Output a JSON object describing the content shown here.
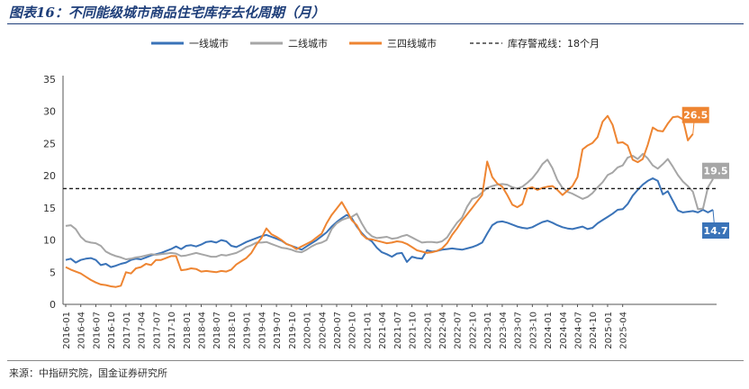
{
  "title": "图表16：不同能级城市商品住宅库存去化周期（月）",
  "source": "来源：中指研究院，国金证券研究所",
  "chart_data": {
    "type": "line",
    "ylim": [
      0,
      35
    ],
    "yticks": [
      0,
      5,
      10,
      15,
      20,
      25,
      30,
      35
    ],
    "grid": false,
    "legend_position": "top",
    "x_tick_labels": [
      "2016-01",
      "2016-04",
      "2016-07",
      "2016-10",
      "2017-01",
      "2017-04",
      "2017-07",
      "2017-10",
      "2018-01",
      "2018-04",
      "2018-07",
      "2018-10",
      "2019-01",
      "2019-04",
      "2019-07",
      "2019-10",
      "2020-01",
      "2020-04",
      "2020-07",
      "2020-10",
      "2021-01",
      "2021-04",
      "2021-07",
      "2021-10",
      "2022-01",
      "2022-04",
      "2022-07",
      "2022-10",
      "2023-01",
      "2023-04",
      "2023-07",
      "2023-10",
      "2024-01",
      "2024-04",
      "2024-07",
      "2024-10",
      "2025-01",
      "2025-04"
    ],
    "x_start": "2016-01",
    "series": [
      {
        "name": "一线城市",
        "color": "#3a73b8",
        "end_label": "14.7",
        "values": [
          6.9,
          7.1,
          6.5,
          6.9,
          7.1,
          7.2,
          6.9,
          6.1,
          6.3,
          5.8,
          6.0,
          6.3,
          6.5,
          6.9,
          7.1,
          7.0,
          7.3,
          7.6,
          7.8,
          8.0,
          8.3,
          8.6,
          9.0,
          8.6,
          9.1,
          9.2,
          9.0,
          9.3,
          9.7,
          9.8,
          9.6,
          10.0,
          9.8,
          9.1,
          8.9,
          9.3,
          9.7,
          10.0,
          10.3,
          10.6,
          10.8,
          10.5,
          10.2,
          9.9,
          9.4,
          9.1,
          8.8,
          8.5,
          9.0,
          9.5,
          10.0,
          10.6,
          11.2,
          12.1,
          12.8,
          13.4,
          13.9,
          13.4,
          12.1,
          11.1,
          10.3,
          9.8,
          8.8,
          8.1,
          7.8,
          7.4,
          7.9,
          8.0,
          6.6,
          7.4,
          7.2,
          7.1,
          8.4,
          8.2,
          8.3,
          8.5,
          8.6,
          8.7,
          8.6,
          8.5,
          8.7,
          8.9,
          9.2,
          9.6,
          11.0,
          12.3,
          12.8,
          12.9,
          12.7,
          12.4,
          12.1,
          11.9,
          11.8,
          12.0,
          12.4,
          12.8,
          13.0,
          12.7,
          12.3,
          12.0,
          11.8,
          11.7,
          11.9,
          12.1,
          11.7,
          11.9,
          12.6,
          13.1,
          13.6,
          14.1,
          14.7,
          14.8,
          15.6,
          16.9,
          17.8,
          18.6,
          19.2,
          19.6,
          19.2,
          17.1,
          17.6,
          16.1,
          14.6,
          14.3,
          14.4,
          14.5,
          14.3,
          14.7,
          14.3,
          14.7
        ]
      },
      {
        "name": "二线城市",
        "color": "#a6a6a6",
        "end_label": "19.5",
        "values": [
          12.2,
          12.3,
          11.7,
          10.5,
          9.8,
          9.6,
          9.5,
          9.1,
          8.2,
          7.8,
          7.5,
          7.3,
          7.0,
          7.1,
          7.3,
          7.4,
          7.6,
          7.8,
          7.7,
          7.8,
          7.9,
          8.0,
          7.9,
          7.5,
          7.6,
          7.8,
          8.0,
          7.8,
          7.6,
          7.4,
          7.4,
          7.7,
          7.6,
          7.8,
          8.0,
          8.4,
          8.9,
          9.2,
          9.6,
          9.6,
          9.7,
          9.4,
          9.1,
          8.8,
          8.7,
          8.5,
          8.2,
          8.1,
          8.5,
          9.0,
          9.4,
          9.6,
          10.0,
          11.7,
          12.6,
          13.1,
          13.4,
          13.6,
          14.1,
          12.6,
          11.3,
          10.6,
          10.3,
          10.4,
          10.5,
          10.2,
          10.3,
          10.6,
          10.8,
          10.4,
          10.0,
          9.6,
          9.7,
          9.7,
          9.6,
          9.8,
          10.4,
          11.6,
          12.7,
          13.5,
          15.2,
          16.4,
          16.7,
          17.4,
          18.1,
          18.4,
          18.6,
          18.7,
          18.6,
          18.2,
          18.0,
          18.3,
          18.9,
          19.6,
          20.6,
          21.8,
          22.5,
          21.2,
          19.3,
          18.1,
          17.5,
          17.2,
          16.8,
          16.4,
          16.7,
          17.3,
          18.2,
          19.0,
          20.1,
          20.5,
          21.3,
          21.6,
          22.8,
          23.1,
          22.6,
          23.4,
          22.7,
          21.6,
          21.1,
          21.8,
          22.6,
          21.4,
          20.1,
          19.1,
          18.4,
          17.5,
          14.8,
          14.9,
          18.2,
          19.5
        ]
      },
      {
        "name": "三四线城市",
        "color": "#ee8532",
        "end_label": "26.5",
        "values": [
          5.8,
          5.4,
          5.1,
          4.8,
          4.3,
          3.8,
          3.4,
          3.1,
          3.0,
          2.8,
          2.7,
          2.9,
          5.0,
          4.8,
          5.6,
          5.8,
          6.3,
          6.1,
          6.9,
          6.9,
          7.2,
          7.5,
          7.5,
          5.3,
          5.4,
          5.6,
          5.5,
          5.1,
          5.2,
          5.1,
          5.0,
          5.2,
          5.1,
          5.4,
          6.2,
          6.7,
          7.2,
          8.0,
          9.3,
          10.3,
          11.8,
          10.9,
          10.5,
          10.0,
          9.4,
          9.1,
          8.6,
          9.0,
          9.4,
          9.8,
          10.4,
          11.0,
          12.6,
          13.9,
          14.9,
          15.9,
          14.6,
          13.1,
          12.3,
          10.9,
          10.2,
          10.1,
          9.9,
          9.7,
          9.5,
          9.6,
          9.8,
          9.7,
          9.4,
          8.9,
          8.4,
          8.2,
          8.0,
          8.1,
          8.3,
          8.7,
          9.5,
          10.8,
          11.8,
          13.0,
          14.0,
          15.0,
          16.0,
          17.0,
          22.2,
          19.8,
          18.8,
          18.3,
          17.0,
          15.5,
          15.1,
          15.6,
          18.0,
          18.2,
          17.8,
          18.1,
          18.3,
          18.4,
          17.8,
          17.0,
          17.7,
          18.4,
          19.8,
          24.1,
          24.7,
          25.1,
          26.0,
          28.4,
          29.3,
          27.9,
          25.1,
          25.2,
          24.7,
          22.5,
          22.1,
          22.6,
          24.8,
          27.5,
          27.0,
          26.9,
          28.1,
          29.1,
          29.2,
          28.8,
          25.5,
          26.5
        ]
      },
      {
        "name": "库存警戒线：18个月",
        "color": "#1a1a1a",
        "dashed": true,
        "values": [
          18,
          18
        ]
      }
    ]
  }
}
